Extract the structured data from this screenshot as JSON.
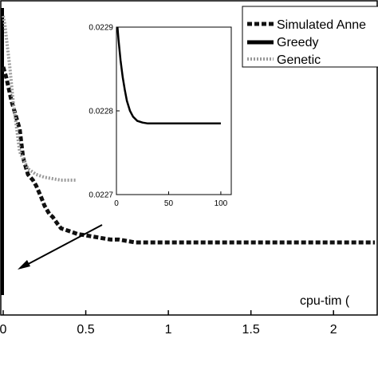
{
  "chart_data": [
    {
      "type": "line",
      "xlabel": "cpu-tim (",
      "xlim": [
        0,
        2.25
      ],
      "xticks": [
        "0",
        "0.5",
        "1",
        "1.5",
        "2"
      ],
      "grid": false,
      "legend_position": "top-right",
      "legend": [
        {
          "name": "Simulated Anne",
          "style": "dashed-thick"
        },
        {
          "name": "Greedy",
          "style": "solid-thick"
        },
        {
          "name": "Genetic",
          "style": "dotted-gray"
        }
      ],
      "series": [
        {
          "name": "Simulated Anne",
          "color": "#111111",
          "x": [
            0.0,
            0.02,
            0.05,
            0.08,
            0.1,
            0.12,
            0.15,
            0.18,
            0.2,
            0.23,
            0.25,
            0.28,
            0.3,
            0.33,
            0.35,
            0.4,
            0.45,
            0.5,
            0.55,
            0.6,
            0.65,
            0.7,
            0.75,
            0.8,
            1.0,
            1.5,
            2.0,
            2.25
          ],
          "y": [
            0.82,
            0.78,
            0.7,
            0.64,
            0.6,
            0.5,
            0.44,
            0.42,
            0.4,
            0.36,
            0.33,
            0.3,
            0.29,
            0.265,
            0.25,
            0.24,
            0.23,
            0.225,
            0.22,
            0.215,
            0.21,
            0.21,
            0.205,
            0.2,
            0.2,
            0.2,
            0.2,
            0.2
          ]
        },
        {
          "name": "Genetic",
          "color": "#9a9a9a",
          "x": [
            0.0,
            0.01,
            0.02,
            0.04,
            0.06,
            0.1,
            0.15,
            0.2,
            0.25,
            0.3,
            0.35,
            0.4,
            0.44
          ],
          "y": [
            1.0,
            0.97,
            0.92,
            0.82,
            0.7,
            0.52,
            0.46,
            0.44,
            0.43,
            0.425,
            0.42,
            0.42,
            0.42
          ]
        }
      ]
    },
    {
      "type": "line",
      "role": "inset",
      "xlim": [
        0,
        110
      ],
      "ylim": [
        0.0227,
        0.0229
      ],
      "xticks": [
        "0",
        "50",
        "100"
      ],
      "yticks": [
        "0.0227",
        "0.0228",
        "0.0229"
      ],
      "series": [
        {
          "name": "Greedy",
          "color": "#000000",
          "x": [
            1,
            2,
            4,
            6,
            8,
            10,
            13,
            16,
            20,
            25,
            30,
            40,
            60,
            80,
            100
          ],
          "y": [
            0.0229,
            0.022885,
            0.02286,
            0.02284,
            0.022825,
            0.022812,
            0.0228,
            0.022793,
            0.022788,
            0.022786,
            0.022785,
            0.022785,
            0.022785,
            0.022785,
            0.022785
          ]
        }
      ]
    }
  ]
}
